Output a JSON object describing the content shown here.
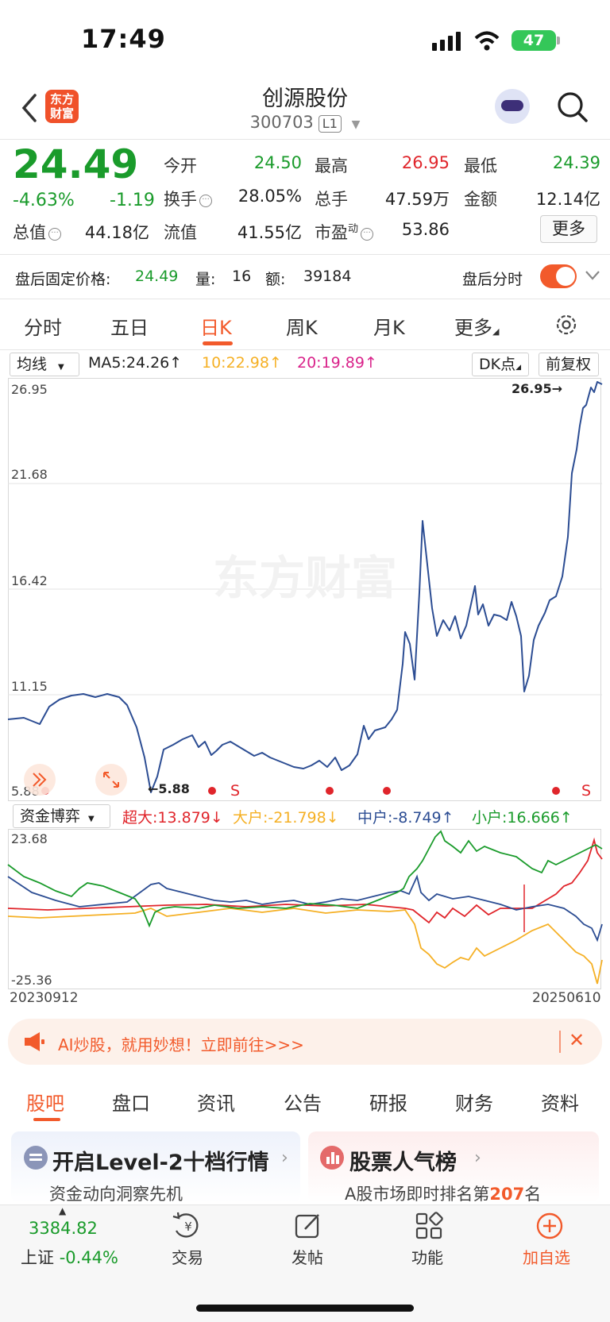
{
  "status_bar": {
    "time": "17:49",
    "battery": "47"
  },
  "header": {
    "logo_line1": "东方",
    "logo_line2": "财富",
    "stock_name": "创源股份",
    "stock_code": "300703",
    "level_badge": "L1"
  },
  "quote": {
    "price": "24.49",
    "change_pct": "-4.63%",
    "change_abs": "-1.19",
    "open_label": "今开",
    "open_value": "24.50",
    "high_label": "最高",
    "high_value": "26.95",
    "low_label": "最低",
    "low_value": "24.39",
    "turnover_label": "换手",
    "turnover_value": "28.05%",
    "volume_label": "总手",
    "volume_value": "47.59万",
    "amount_label": "金额",
    "amount_value": "12.14亿",
    "mktcap_label": "总值",
    "mktcap_value": "44.18亿",
    "float_label": "流值",
    "float_value": "41.55亿",
    "pe_label": "市盈",
    "pe_sup": "动",
    "pe_value": "53.86",
    "more_label": "更多"
  },
  "after_hours": {
    "price_label": "盘后固定价格:",
    "price_value": "24.49",
    "volume_label": "量:",
    "volume_value": "16",
    "amount_label": "额:",
    "amount_value": "39184",
    "timeshare_label": "盘后分时"
  },
  "period_tabs": [
    "分时",
    "五日",
    "日K",
    "周K",
    "月K",
    "更多"
  ],
  "ma_bar": {
    "indicator": "均线",
    "ma5": "MA5:24.26",
    "ma10": "10:22.98",
    "ma20": "20:19.89",
    "dk": "DK点",
    "adjust": "前复权"
  },
  "price_chart": {
    "y_labels": [
      "26.95",
      "21.68",
      "16.42",
      "11.15",
      "5.88"
    ],
    "max_label": "26.95",
    "min_label": "5.88",
    "watermark": "东方财富",
    "signal_s": "S",
    "line_color": "#2c4d93"
  },
  "fund_flow": {
    "selector": "资金博弈",
    "super_large": "超大:13.879",
    "large": "大户:-21.798",
    "medium": "中户:-8.749",
    "small": "小户:16.666",
    "y_top": "23.68",
    "y_bottom": "-25.36",
    "x_start": "20230912",
    "x_end": "20250610",
    "colors": {
      "super_large": "#e0252b",
      "large": "#f5b025",
      "medium": "#2c4d93",
      "small": "#1a9b2b"
    }
  },
  "banner": {
    "text": "AI炒股，就用妙想！立即前往>>>"
  },
  "content_tabs": [
    "股吧",
    "盘口",
    "资讯",
    "公告",
    "研报",
    "财务",
    "资料"
  ],
  "cards": {
    "level2_title": "开启Level-2十档行情",
    "level2_sub": "资金动向洞察先机",
    "popular_title": "股票人气榜",
    "popular_sub_prefix": "A股市场即时排名第",
    "popular_rank": "207",
    "popular_sub_suffix": "名"
  },
  "bottom_nav": {
    "index_value": "3384.82",
    "index_name": "上证",
    "index_change": "-0.44%",
    "items": [
      "交易",
      "发帖",
      "功能",
      "加自选"
    ]
  }
}
